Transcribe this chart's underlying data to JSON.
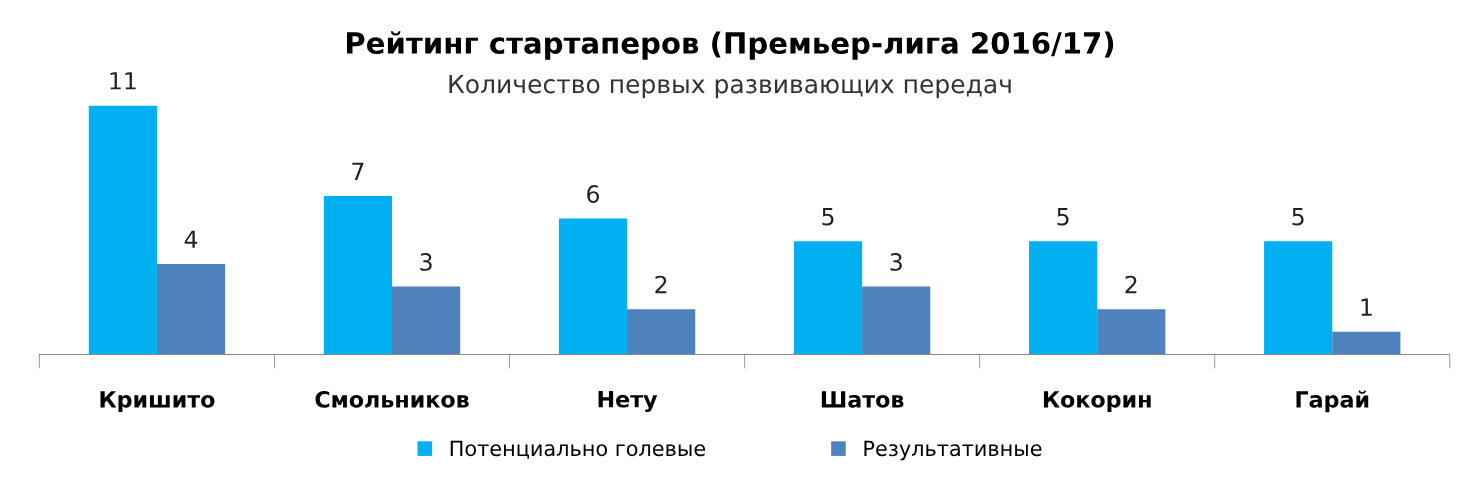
{
  "chart_data": {
    "type": "bar",
    "title": "Рейтинг стартаперов (Премьер-лига 2016/17)",
    "subtitle": "Количество первых развивающих передач",
    "categories": [
      "Кришито",
      "Смольников",
      "Нету",
      "Шатов",
      "Кокорин",
      "Гарай"
    ],
    "series": [
      {
        "name": "Потенциально голевые",
        "color": "#00b0f0",
        "values": [
          11,
          7,
          6,
          5,
          5,
          5
        ]
      },
      {
        "name": "Результативные",
        "color": "#4f81bd",
        "values": [
          4,
          3,
          2,
          3,
          2,
          1
        ]
      }
    ],
    "data_labels": true,
    "legend": "bottom",
    "grid": false
  }
}
